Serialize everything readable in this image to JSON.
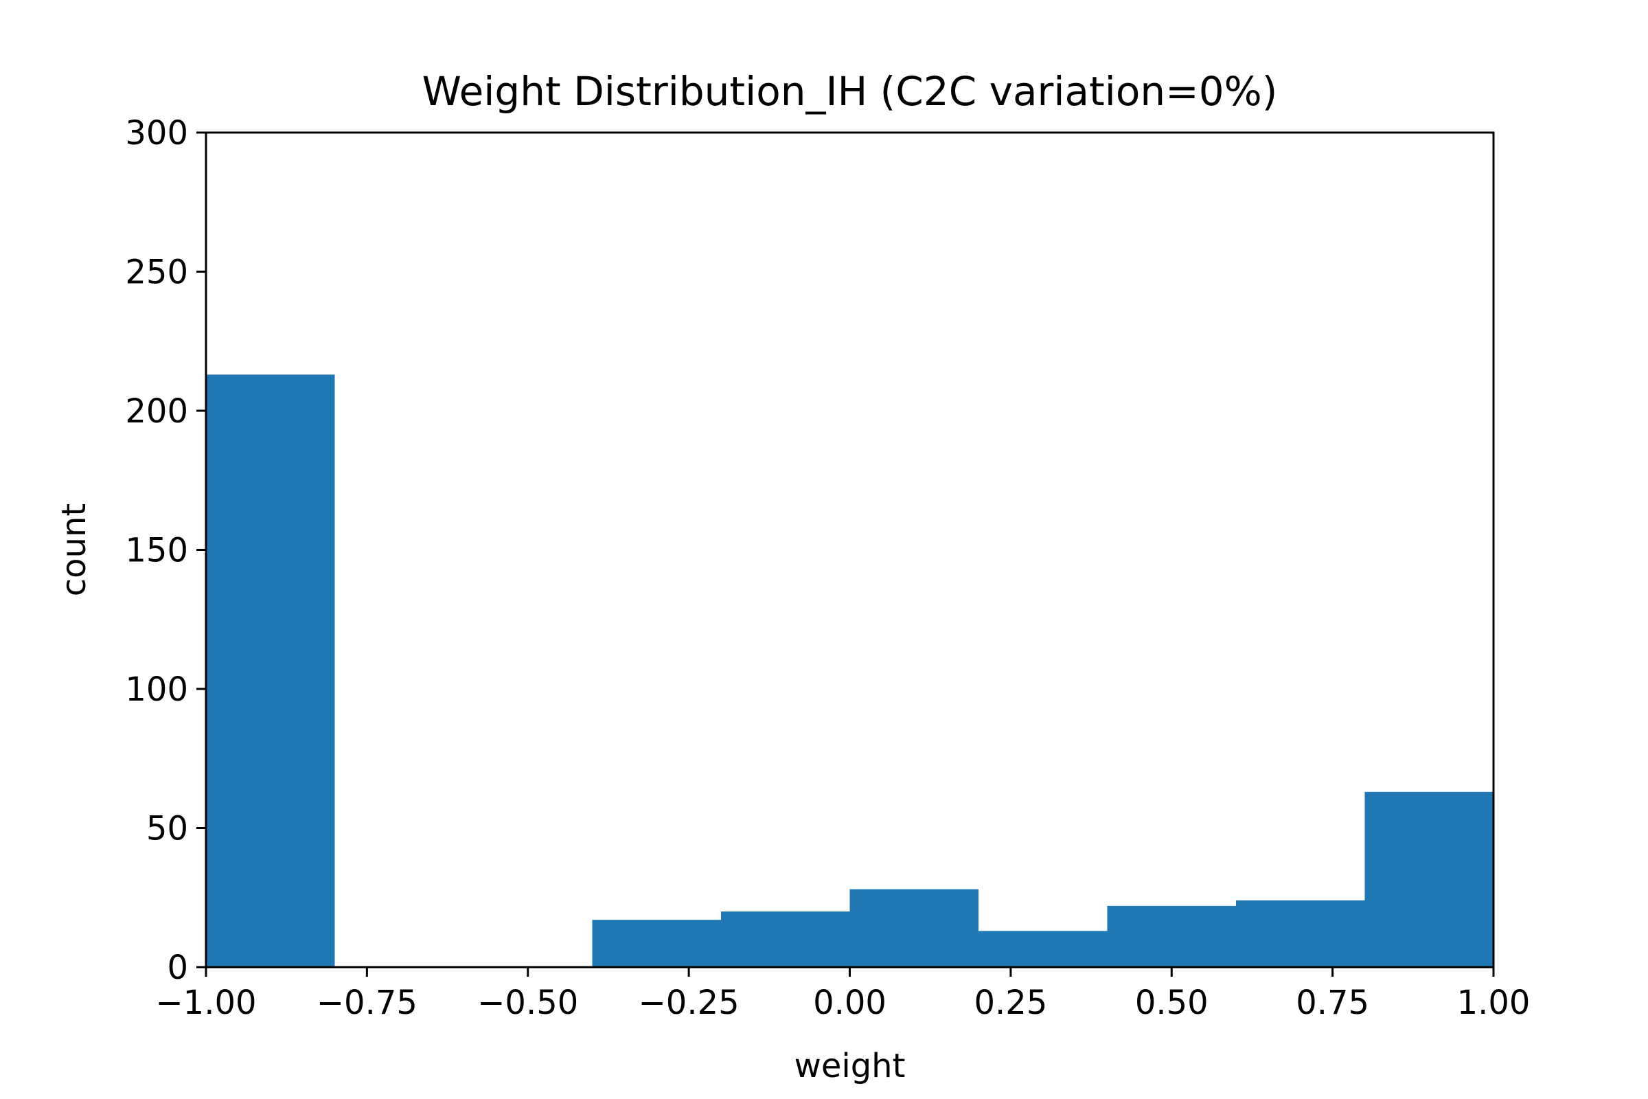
{
  "chart_data": {
    "type": "bar",
    "title": "Weight Distribution_IH (C2C variation=0%)",
    "xlabel": "weight",
    "ylabel": "count",
    "xlim": [
      -1.0,
      1.0
    ],
    "ylim": [
      0,
      300
    ],
    "bin_edges": [
      -1.0,
      -0.8,
      -0.6,
      -0.4,
      -0.2,
      0.0,
      0.2,
      0.4,
      0.6,
      0.8,
      1.0
    ],
    "values": [
      213,
      0,
      0,
      17,
      20,
      28,
      13,
      22,
      24,
      63
    ],
    "xticks": [
      -1.0,
      -0.75,
      -0.5,
      -0.25,
      0.0,
      0.25,
      0.5,
      0.75,
      1.0
    ],
    "xtick_labels": [
      "−1.00",
      "−0.75",
      "−0.50",
      "−0.25",
      "0.00",
      "0.25",
      "0.50",
      "0.75",
      "1.00"
    ],
    "yticks": [
      0,
      50,
      100,
      150,
      200,
      250,
      300
    ],
    "ytick_labels": [
      "0",
      "50",
      "100",
      "150",
      "200",
      "250",
      "300"
    ],
    "grid": false,
    "bar_color": "#1f77b4"
  }
}
